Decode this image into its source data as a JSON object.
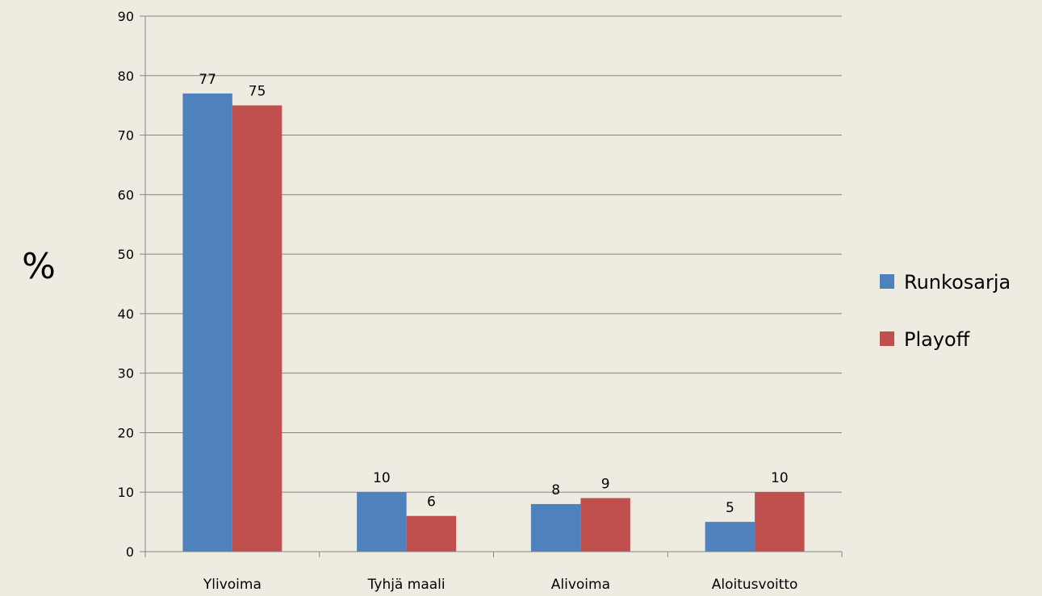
{
  "chart_data": {
    "type": "bar",
    "categories": [
      "Ylivoima",
      "Tyhjä maali",
      "Alivoima",
      "Aloitusvoitto"
    ],
    "series": [
      {
        "name": "Runkosarja",
        "values": [
          77,
          10,
          8,
          5
        ],
        "color": "#4f81bd"
      },
      {
        "name": "Playoff",
        "values": [
          75,
          6,
          9,
          10
        ],
        "color": "#c0504d"
      }
    ],
    "ylabel": "%",
    "ylim": [
      0,
      90
    ],
    "yticks": [
      0,
      10,
      20,
      30,
      40,
      50,
      60,
      70,
      80,
      90
    ],
    "grid": true,
    "legend": "right"
  }
}
